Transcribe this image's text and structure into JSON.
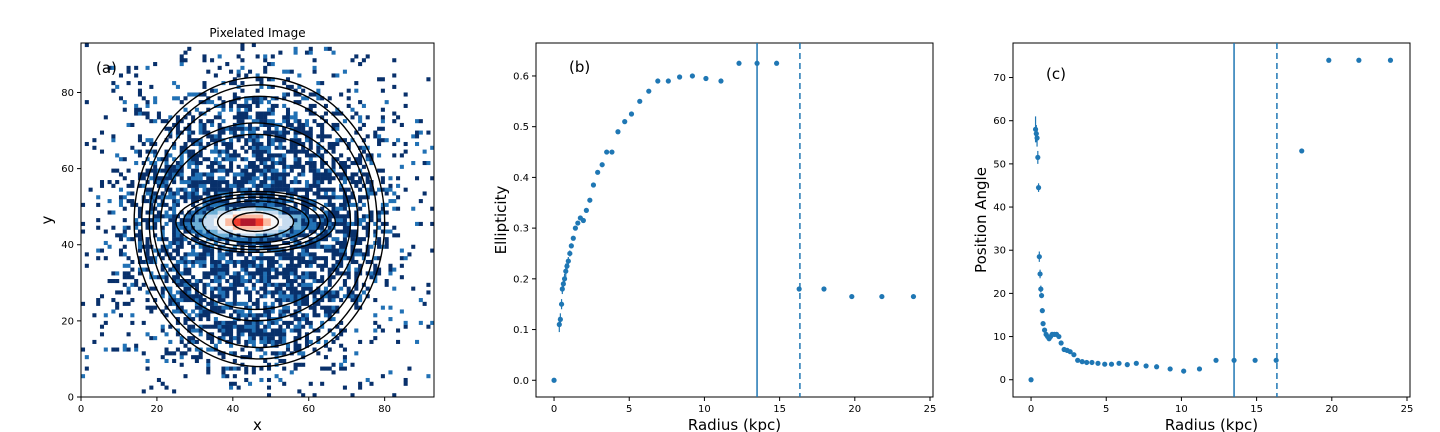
{
  "colors": {
    "series": "#1f77b4",
    "pixel_colormap": [
      "#08306b",
      "#2171b5",
      "#6baed6",
      "#c6dbef",
      "#f7f7f7",
      "#fcbba1",
      "#ef3b2c",
      "#b2182b"
    ],
    "contour": "#000000"
  },
  "chart_data": [
    {
      "type": "heatmap",
      "panel_label": "(a)",
      "title": "Pixelated Image",
      "xlabel": "x",
      "ylabel": "y",
      "xlim": [
        0,
        93
      ],
      "ylim": [
        0,
        93
      ],
      "xticks": [
        0,
        20,
        40,
        60,
        80
      ],
      "yticks": [
        0,
        20,
        40,
        60,
        80
      ],
      "image_center": [
        46,
        46
      ],
      "peak_center": [
        44,
        46
      ],
      "contours": [
        {
          "cx": 46,
          "cy": 46,
          "a": 6,
          "b": 2.5
        },
        {
          "cx": 46,
          "cy": 46,
          "a": 10,
          "b": 4
        },
        {
          "cx": 46,
          "cy": 46,
          "a": 14,
          "b": 5.5
        },
        {
          "cx": 46,
          "cy": 46,
          "a": 17,
          "b": 6.5
        },
        {
          "cx": 46,
          "cy": 46,
          "a": 19,
          "b": 7.3
        },
        {
          "cx": 46,
          "cy": 46,
          "a": 21,
          "b": 8
        },
        {
          "cx": 46,
          "cy": 46,
          "a": 25,
          "b": 23
        },
        {
          "cx": 46,
          "cy": 46,
          "a": 27,
          "b": 26
        },
        {
          "cx": 47,
          "cy": 46,
          "a": 29,
          "b": 33
        },
        {
          "cx": 47,
          "cy": 46,
          "a": 31,
          "b": 36
        },
        {
          "cx": 47,
          "cy": 46,
          "a": 33,
          "b": 38
        }
      ]
    },
    {
      "type": "scatter",
      "panel_label": "(b)",
      "xlabel": "Radius (kpc)",
      "ylabel": "Ellipticity",
      "xlim": [
        -1.2,
        25.2
      ],
      "ylim": [
        -0.033,
        0.665
      ],
      "xticks": [
        0,
        5,
        10,
        15,
        20,
        25
      ],
      "yticks": [
        0.0,
        0.1,
        0.2,
        0.3,
        0.4,
        0.5,
        0.6
      ],
      "vlines": [
        {
          "x": 13.5,
          "style": "solid"
        },
        {
          "x": 16.35,
          "style": "dashed"
        }
      ],
      "x": [
        0.0,
        0.35,
        0.42,
        0.5,
        0.55,
        0.62,
        0.7,
        0.78,
        0.86,
        0.95,
        1.05,
        1.15,
        1.28,
        1.42,
        1.58,
        1.75,
        1.95,
        2.15,
        2.38,
        2.62,
        2.9,
        3.2,
        3.5,
        3.85,
        4.25,
        4.7,
        5.15,
        5.7,
        6.3,
        6.9,
        7.6,
        8.35,
        9.2,
        10.1,
        11.1,
        12.3,
        13.5,
        14.8,
        16.3,
        17.95,
        19.8,
        21.8,
        23.9
      ],
      "y": [
        0.0,
        0.11,
        0.12,
        0.15,
        0.18,
        0.19,
        0.2,
        0.215,
        0.225,
        0.235,
        0.25,
        0.265,
        0.28,
        0.3,
        0.31,
        0.32,
        0.315,
        0.335,
        0.355,
        0.385,
        0.41,
        0.425,
        0.45,
        0.45,
        0.49,
        0.51,
        0.525,
        0.55,
        0.57,
        0.59,
        0.59,
        0.598,
        0.6,
        0.595,
        0.59,
        0.625,
        0.625,
        0.625,
        0.18,
        0.18,
        0.165,
        0.165,
        0.165
      ],
      "yerr": [
        0.0,
        0.015,
        0.012,
        0.01,
        0.01,
        0.01,
        0.01,
        0.015,
        0.01,
        0.008,
        0.006,
        0.005,
        0.004,
        0.004,
        0.004,
        0.003,
        0.003,
        0.003,
        0.003,
        0.003,
        0.003,
        0.003,
        0.003,
        0.003,
        0.003,
        0.003,
        0.003,
        0.003,
        0.003,
        0.003,
        0.003,
        0.003,
        0.003,
        0.003,
        0.003,
        0.003,
        0.003,
        0.003,
        0.003,
        0.003,
        0.003,
        0.003,
        0.003
      ]
    },
    {
      "type": "scatter",
      "panel_label": "(c)",
      "xlabel": "Radius (kpc)",
      "ylabel": "Position Angle",
      "xlim": [
        -1.2,
        25.2
      ],
      "ylim": [
        -4,
        78
      ],
      "xticks": [
        0,
        5,
        10,
        15,
        20,
        25
      ],
      "yticks": [
        0,
        10,
        20,
        30,
        40,
        50,
        60,
        70
      ],
      "vlines": [
        {
          "x": 13.5,
          "style": "solid"
        },
        {
          "x": 16.35,
          "style": "dashed"
        }
      ],
      "x": [
        0.0,
        0.3,
        0.35,
        0.4,
        0.45,
        0.5,
        0.55,
        0.6,
        0.65,
        0.7,
        0.75,
        0.8,
        0.9,
        1.0,
        1.1,
        1.2,
        1.3,
        1.4,
        1.55,
        1.7,
        1.85,
        2.0,
        2.2,
        2.4,
        2.6,
        2.85,
        3.1,
        3.4,
        3.7,
        4.05,
        4.45,
        4.9,
        5.35,
        5.85,
        6.4,
        7.0,
        7.65,
        8.35,
        9.25,
        10.15,
        11.2,
        12.3,
        13.5,
        14.9,
        16.3,
        18.0,
        19.8,
        21.8,
        23.9
      ],
      "y": [
        0.0,
        58.0,
        57.0,
        56.0,
        51.5,
        44.5,
        28.5,
        24.5,
        21.0,
        19.5,
        16.0,
        13.0,
        11.5,
        10.5,
        10.0,
        9.5,
        10.0,
        10.5,
        10.5,
        10.5,
        10.0,
        8.5,
        7.0,
        6.8,
        6.5,
        5.8,
        4.5,
        4.2,
        4.0,
        4.0,
        3.8,
        3.6,
        3.6,
        3.8,
        3.5,
        3.8,
        3.2,
        3.0,
        2.5,
        2.0,
        2.5,
        4.5,
        4.5,
        4.5,
        4.5,
        53.0,
        74.0,
        74.0,
        74.0
      ],
      "yerr": [
        0.0,
        3.0,
        2.0,
        2.0,
        1.5,
        1.0,
        1.2,
        1.0,
        0.8,
        0.6,
        0.5,
        0.5,
        0.5,
        0.4,
        0.4,
        0.3,
        0.3,
        0.3,
        0.3,
        0.3,
        0.3,
        0.3,
        0.3,
        0.3,
        0.3,
        0.3,
        0.3,
        0.3,
        0.3,
        0.3,
        0.3,
        0.3,
        0.3,
        0.3,
        0.3,
        0.3,
        0.3,
        0.3,
        0.3,
        0.3,
        0.3,
        0.3,
        0.3,
        0.3,
        0.3,
        0.3,
        0.3,
        0.3,
        0.3
      ]
    }
  ]
}
